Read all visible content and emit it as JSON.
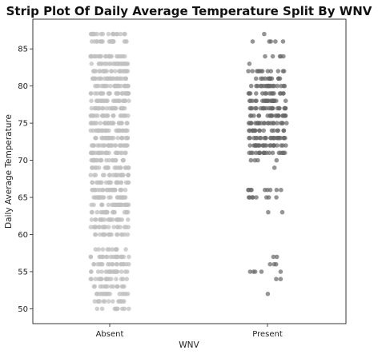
{
  "chart_data": {
    "type": "scatter",
    "title": "Strip Plot Of Daily Average Temperature Split By WNV",
    "xlabel": "WNV",
    "ylabel": "Daily Average Temperature",
    "categories": [
      "Absent",
      "Present"
    ],
    "yticks": [
      50,
      55,
      60,
      65,
      70,
      75,
      80,
      85
    ],
    "ylim": [
      48,
      89
    ],
    "grid": false,
    "legend": "none",
    "colors": {
      "Absent": "#c0c0c0",
      "Present": "#686868"
    },
    "series": [
      {
        "category": "Absent",
        "values": [
          50,
          50,
          50,
          50,
          50,
          50,
          50,
          50,
          50,
          50,
          51,
          51,
          51,
          51,
          51,
          51,
          51,
          51,
          51,
          51,
          51,
          51,
          51,
          51,
          52,
          52,
          52,
          52,
          52,
          52,
          52,
          52,
          52,
          52,
          52,
          52,
          52,
          52,
          52,
          52,
          53,
          53,
          53,
          53,
          53,
          53,
          53,
          53,
          53,
          53,
          53,
          53,
          53,
          53,
          53,
          54,
          54,
          54,
          54,
          54,
          54,
          54,
          54,
          54,
          54,
          54,
          54,
          54,
          54,
          54,
          54,
          54,
          55,
          55,
          55,
          55,
          55,
          55,
          55,
          55,
          55,
          55,
          55,
          55,
          55,
          55,
          55,
          55,
          55,
          55,
          55,
          55,
          56,
          56,
          56,
          56,
          56,
          56,
          56,
          56,
          56,
          56,
          56,
          56,
          56,
          56,
          56,
          56,
          56,
          56,
          57,
          57,
          57,
          57,
          57,
          57,
          57,
          57,
          57,
          57,
          57,
          57,
          57,
          57,
          57,
          57,
          57,
          57,
          57,
          58,
          58,
          58,
          58,
          58,
          58,
          58,
          58,
          58,
          58,
          60,
          60,
          60,
          60,
          60,
          60,
          60,
          60,
          60,
          60,
          60,
          60,
          60,
          60,
          60,
          60,
          60,
          60,
          61,
          61,
          61,
          61,
          61,
          61,
          61,
          61,
          61,
          61,
          61,
          61,
          61,
          61,
          61,
          61,
          61,
          61,
          61,
          61,
          62,
          62,
          62,
          62,
          62,
          62,
          62,
          62,
          62,
          62,
          62,
          62,
          62,
          62,
          62,
          62,
          62,
          62,
          62,
          62,
          62,
          62,
          63,
          63,
          63,
          63,
          63,
          63,
          63,
          63,
          63,
          63,
          63,
          63,
          63,
          63,
          63,
          63,
          63,
          63,
          63,
          63,
          63,
          63,
          64,
          64,
          64,
          64,
          64,
          64,
          64,
          64,
          64,
          64,
          64,
          64,
          64,
          64,
          64,
          64,
          64,
          64,
          64,
          64,
          64,
          64,
          64,
          65,
          65,
          65,
          65,
          65,
          65,
          65,
          65,
          65,
          65,
          65,
          65,
          65,
          65,
          65,
          65,
          65,
          65,
          65,
          65,
          65,
          65,
          65,
          66,
          66,
          66,
          66,
          66,
          66,
          66,
          66,
          66,
          66,
          66,
          66,
          66,
          66,
          66,
          66,
          66,
          66,
          66,
          66,
          66,
          66,
          66,
          67,
          67,
          67,
          67,
          67,
          67,
          67,
          67,
          67,
          67,
          67,
          67,
          67,
          67,
          67,
          67,
          67,
          67,
          67,
          67,
          67,
          67,
          68,
          68,
          68,
          68,
          68,
          68,
          68,
          68,
          68,
          68,
          68,
          68,
          68,
          68,
          68,
          68,
          68,
          68,
          68,
          68,
          69,
          69,
          69,
          69,
          69,
          69,
          69,
          69,
          69,
          69,
          69,
          69,
          69,
          69,
          69,
          69,
          69,
          69,
          69,
          70,
          70,
          70,
          70,
          70,
          70,
          70,
          70,
          70,
          70,
          70,
          70,
          70,
          70,
          70,
          70,
          70,
          70,
          70,
          70,
          70,
          70,
          71,
          71,
          71,
          71,
          71,
          71,
          71,
          71,
          71,
          71,
          71,
          71,
          71,
          71,
          71,
          71,
          71,
          71,
          71,
          71,
          71,
          71,
          71,
          71,
          72,
          72,
          72,
          72,
          72,
          72,
          72,
          72,
          72,
          72,
          72,
          72,
          72,
          72,
          72,
          72,
          72,
          72,
          72,
          72,
          72,
          72,
          72,
          72,
          72,
          73,
          73,
          73,
          73,
          73,
          73,
          73,
          73,
          73,
          73,
          73,
          73,
          73,
          73,
          73,
          73,
          73,
          73,
          73,
          73,
          73,
          73,
          73,
          73,
          73,
          74,
          74,
          74,
          74,
          74,
          74,
          74,
          74,
          74,
          74,
          74,
          74,
          74,
          74,
          74,
          74,
          74,
          74,
          74,
          74,
          74,
          74,
          74,
          74,
          74,
          75,
          75,
          75,
          75,
          75,
          75,
          75,
          75,
          75,
          75,
          75,
          75,
          75,
          75,
          75,
          75,
          75,
          75,
          75,
          75,
          75,
          75,
          75,
          75,
          75,
          76,
          76,
          76,
          76,
          76,
          76,
          76,
          76,
          76,
          76,
          76,
          76,
          76,
          76,
          76,
          76,
          76,
          76,
          76,
          76,
          76,
          76,
          76,
          76,
          76,
          77,
          77,
          77,
          77,
          77,
          77,
          77,
          77,
          77,
          77,
          77,
          77,
          77,
          77,
          77,
          77,
          77,
          77,
          77,
          77,
          77,
          77,
          77,
          77,
          77,
          78,
          78,
          78,
          78,
          78,
          78,
          78,
          78,
          78,
          78,
          78,
          78,
          78,
          78,
          78,
          78,
          78,
          78,
          78,
          78,
          78,
          78,
          78,
          78,
          78,
          79,
          79,
          79,
          79,
          79,
          79,
          79,
          79,
          79,
          79,
          79,
          79,
          79,
          79,
          79,
          79,
          79,
          79,
          79,
          79,
          79,
          79,
          79,
          79,
          79,
          80,
          80,
          80,
          80,
          80,
          80,
          80,
          80,
          80,
          80,
          80,
          80,
          80,
          80,
          80,
          80,
          80,
          80,
          80,
          80,
          80,
          80,
          80,
          80,
          80,
          81,
          81,
          81,
          81,
          81,
          81,
          81,
          81,
          81,
          81,
          81,
          81,
          81,
          81,
          81,
          81,
          81,
          81,
          81,
          81,
          81,
          81,
          81,
          81,
          81,
          82,
          82,
          82,
          82,
          82,
          82,
          82,
          82,
          82,
          82,
          82,
          82,
          82,
          82,
          82,
          82,
          82,
          82,
          82,
          82,
          82,
          82,
          82,
          82,
          82,
          83,
          83,
          83,
          83,
          83,
          83,
          83,
          83,
          83,
          83,
          83,
          83,
          83,
          83,
          83,
          83,
          83,
          83,
          83,
          83,
          83,
          83,
          83,
          83,
          83,
          84,
          84,
          84,
          84,
          84,
          84,
          84,
          84,
          84,
          84,
          84,
          84,
          84,
          84,
          84,
          84,
          84,
          84,
          84,
          84,
          84,
          84,
          84,
          84,
          84,
          86,
          86,
          86,
          86,
          86,
          86,
          86,
          86,
          86,
          86,
          86,
          86,
          86,
          86,
          86,
          86,
          86,
          86,
          86,
          86,
          87,
          87,
          87,
          87,
          87,
          87,
          87,
          87,
          87,
          87,
          87,
          87,
          87,
          87,
          87,
          87,
          87,
          87
        ]
      },
      {
        "category": "Present",
        "values": [
          52,
          54,
          54,
          55,
          55,
          55,
          55,
          55,
          56,
          56,
          56,
          57,
          57,
          63,
          63,
          65,
          65,
          65,
          65,
          65,
          65,
          65,
          65,
          66,
          66,
          66,
          66,
          66,
          66,
          66,
          66,
          66,
          69,
          70,
          70,
          70,
          70,
          71,
          71,
          71,
          71,
          71,
          71,
          71,
          71,
          71,
          71,
          71,
          71,
          71,
          71,
          71,
          71,
          71,
          71,
          72,
          72,
          72,
          72,
          72,
          72,
          72,
          72,
          72,
          72,
          72,
          72,
          72,
          72,
          72,
          72,
          72,
          72,
          72,
          72,
          72,
          72,
          73,
          73,
          73,
          73,
          73,
          73,
          73,
          73,
          73,
          73,
          73,
          73,
          73,
          73,
          73,
          73,
          73,
          73,
          73,
          73,
          73,
          73,
          73,
          74,
          74,
          74,
          74,
          74,
          74,
          74,
          74,
          74,
          74,
          74,
          74,
          74,
          74,
          74,
          74,
          74,
          75,
          75,
          75,
          75,
          75,
          75,
          75,
          75,
          75,
          75,
          75,
          75,
          75,
          75,
          75,
          75,
          75,
          75,
          75,
          75,
          75,
          75,
          76,
          76,
          76,
          76,
          76,
          76,
          76,
          76,
          76,
          76,
          76,
          76,
          76,
          76,
          76,
          76,
          76,
          76,
          76,
          76,
          76,
          76,
          77,
          77,
          77,
          77,
          77,
          77,
          77,
          77,
          77,
          77,
          77,
          77,
          77,
          77,
          77,
          77,
          77,
          77,
          77,
          77,
          77,
          77,
          78,
          78,
          78,
          78,
          78,
          78,
          78,
          78,
          78,
          78,
          78,
          78,
          78,
          78,
          78,
          78,
          78,
          78,
          78,
          78,
          78,
          78,
          79,
          79,
          79,
          79,
          79,
          79,
          79,
          79,
          79,
          79,
          79,
          79,
          79,
          79,
          79,
          80,
          80,
          80,
          80,
          80,
          80,
          80,
          80,
          80,
          80,
          80,
          80,
          80,
          80,
          80,
          80,
          80,
          80,
          81,
          81,
          81,
          81,
          81,
          81,
          81,
          81,
          81,
          81,
          81,
          81,
          82,
          82,
          82,
          82,
          82,
          82,
          82,
          82,
          82,
          82,
          82,
          82,
          83,
          84,
          84,
          84,
          84,
          84,
          86,
          86,
          86,
          86,
          86,
          87
        ]
      }
    ]
  }
}
